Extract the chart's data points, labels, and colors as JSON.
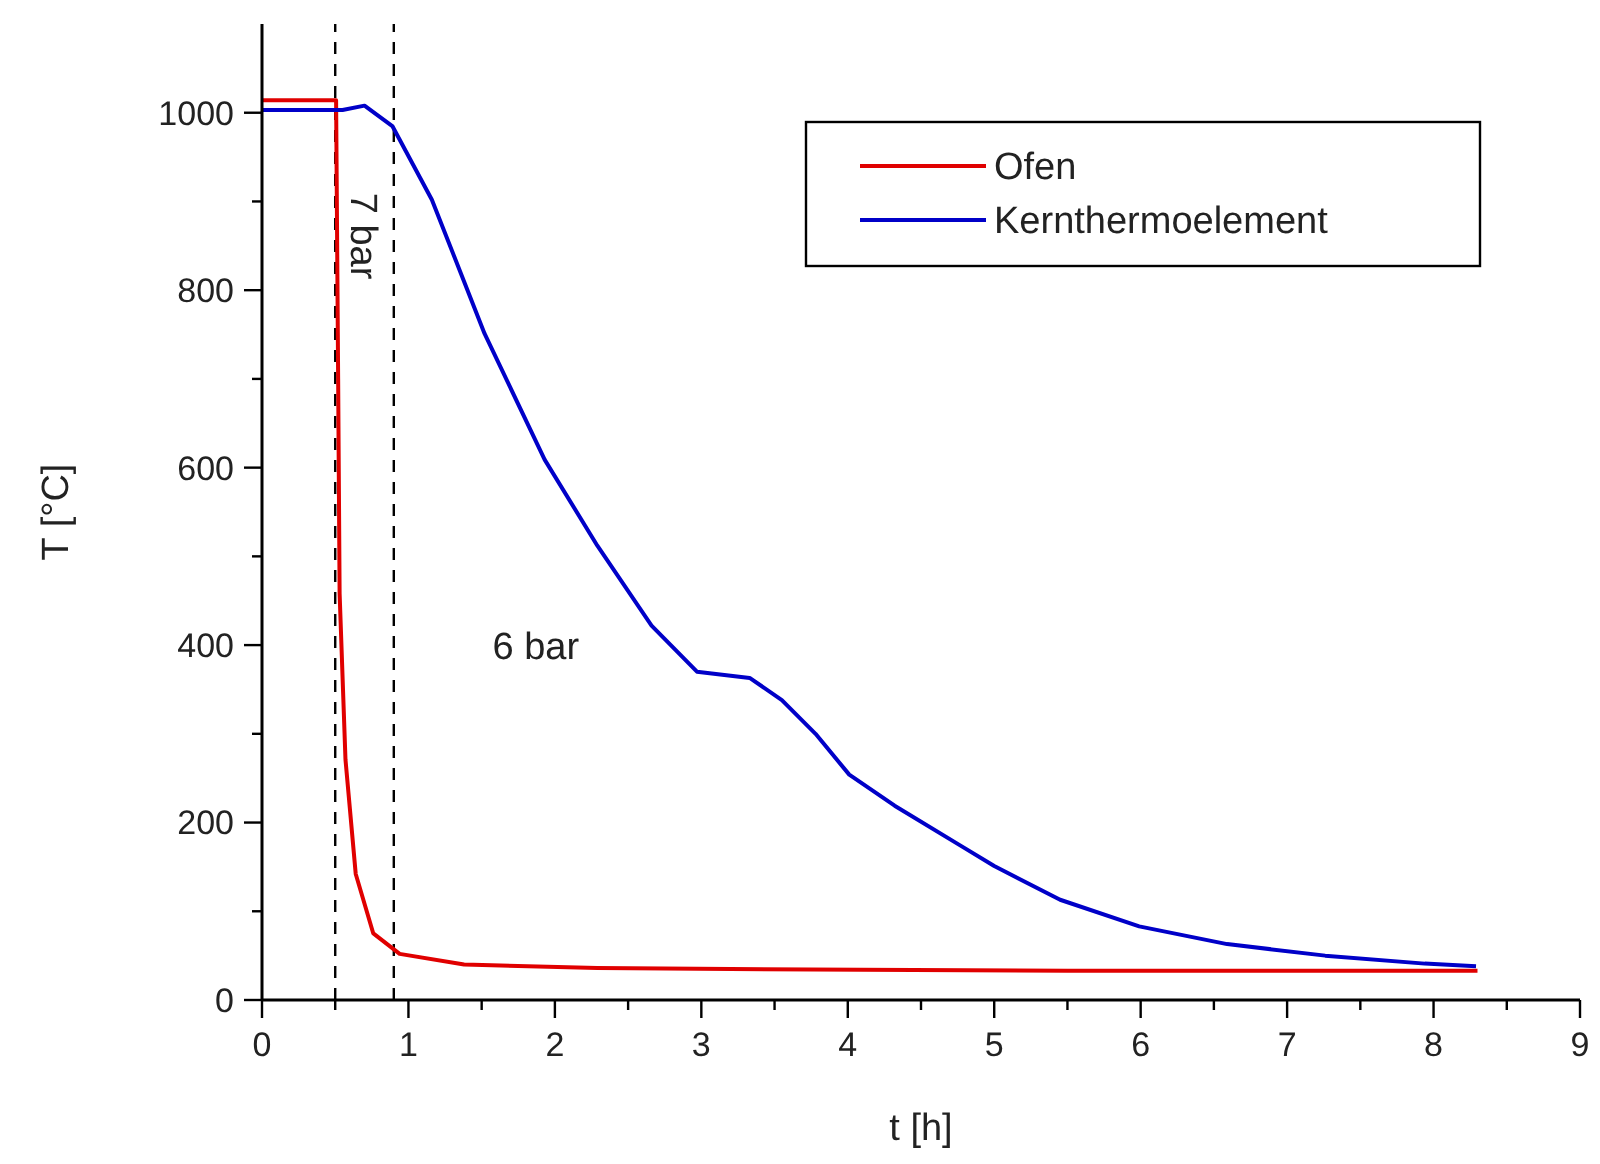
{
  "chart_data": {
    "type": "line",
    "xlabel": "t [h]",
    "ylabel": "T [°C]",
    "xlim": [
      0,
      9
    ],
    "ylim": [
      0,
      1100
    ],
    "xticks": [
      0,
      {
        "value": 0.5,
        "label": null
      },
      1,
      {
        "value": 1.5,
        "label": null
      },
      2,
      {
        "value": 2.5,
        "label": null
      },
      3,
      {
        "value": 3.5,
        "label": null
      },
      4,
      {
        "value": 4.5,
        "label": null
      },
      5,
      {
        "value": 5.5,
        "label": null
      },
      6,
      {
        "value": 6.5,
        "label": null
      },
      7,
      {
        "value": 7.5,
        "label": null
      },
      8,
      {
        "value": 8.5,
        "label": null
      },
      9
    ],
    "yticks": [
      0,
      {
        "value": 100,
        "label": null
      },
      200,
      {
        "value": 300,
        "label": null
      },
      400,
      {
        "value": 500,
        "label": null
      },
      600,
      {
        "value": 700,
        "label": null
      },
      800,
      {
        "value": 900,
        "label": null
      },
      1000
    ],
    "grid": false,
    "legend": "top right",
    "marker": "none",
    "line_style": "solid",
    "series": [
      {
        "name": "Ofen",
        "color": "#e00000",
        "x": [
          0,
          0.5,
          0.506,
          0.52,
          0.53,
          0.57,
          0.64,
          0.76,
          0.94,
          1.38,
          2.29,
          4.09,
          5.5,
          7,
          8.3
        ],
        "values": [
          1014,
          1014,
          1014,
          700,
          458,
          271,
          142,
          75,
          52,
          40,
          36,
          34,
          33,
          33,
          33
        ]
      },
      {
        "name": "Kernthermoelement",
        "color": "#0000c8",
        "x": [
          0,
          0.55,
          0.7,
          0.89,
          1.16,
          1.52,
          1.93,
          2.29,
          2.66,
          2.97,
          3.33,
          3.55,
          3.78,
          4.01,
          4.32,
          4.77,
          5.0,
          5.45,
          5.99,
          6.59,
          7.26,
          7.94,
          8.29
        ],
        "values": [
          1003,
          1003,
          1008,
          985,
          902,
          751,
          609,
          512,
          422,
          370,
          363,
          338,
          300,
          254,
          219,
          174,
          151,
          113,
          83,
          63,
          50,
          41,
          38
        ]
      }
    ],
    "ref_lines": [
      {
        "axis": "x",
        "value": 0.5,
        "color": "#000000",
        "line_style": "dashed"
      },
      {
        "axis": "x",
        "value": 0.9,
        "color": "#000000",
        "line_style": "dashed"
      }
    ],
    "annotations": [
      "7 bar",
      "6 bar"
    ]
  }
}
